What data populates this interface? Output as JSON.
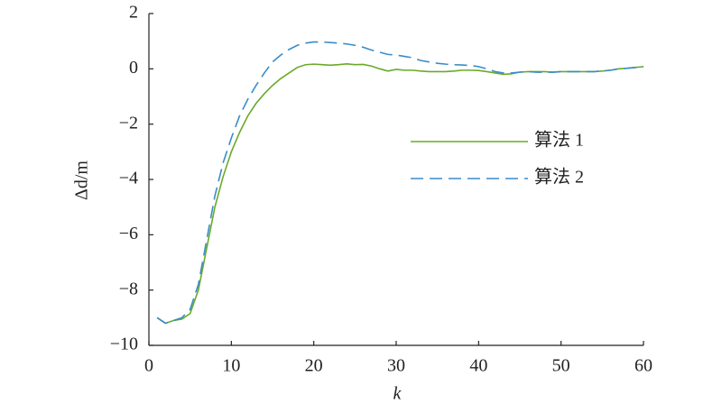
{
  "chart_data": {
    "type": "line",
    "xlabel": "k",
    "ylabel": "Δd/m",
    "x": [
      1,
      2,
      3,
      4,
      5,
      6,
      7,
      8,
      9,
      10,
      11,
      12,
      13,
      14,
      15,
      16,
      17,
      18,
      19,
      20,
      21,
      22,
      23,
      24,
      25,
      26,
      27,
      28,
      29,
      30,
      31,
      32,
      33,
      34,
      35,
      36,
      37,
      38,
      39,
      40,
      41,
      42,
      43,
      44,
      45,
      46,
      47,
      48,
      49,
      50,
      51,
      52,
      53,
      54,
      55,
      56,
      57,
      58,
      59,
      60
    ],
    "series": [
      {
        "name": "算法 1",
        "color": "#6aaa2a",
        "dash": false,
        "values": [
          -9.0,
          -9.2,
          -9.1,
          -9.05,
          -8.85,
          -8.0,
          -6.5,
          -5.0,
          -3.9,
          -3.0,
          -2.3,
          -1.7,
          -1.25,
          -0.9,
          -0.6,
          -0.35,
          -0.15,
          0.05,
          0.15,
          0.17,
          0.15,
          0.13,
          0.15,
          0.18,
          0.15,
          0.16,
          0.1,
          0.0,
          -0.08,
          -0.02,
          -0.05,
          -0.05,
          -0.08,
          -0.1,
          -0.1,
          -0.1,
          -0.08,
          -0.05,
          -0.05,
          -0.06,
          -0.1,
          -0.15,
          -0.2,
          -0.18,
          -0.12,
          -0.1,
          -0.1,
          -0.1,
          -0.12,
          -0.1,
          -0.1,
          -0.1,
          -0.1,
          -0.1,
          -0.08,
          -0.05,
          0.0,
          0.02,
          0.05,
          0.08
        ]
      },
      {
        "name": "算法 2",
        "color": "#3a8cc8",
        "dash": true,
        "values": [
          -9.0,
          -9.2,
          -9.1,
          -9.0,
          -8.7,
          -7.8,
          -6.2,
          -4.6,
          -3.4,
          -2.5,
          -1.7,
          -1.1,
          -0.6,
          -0.15,
          0.25,
          0.5,
          0.7,
          0.85,
          0.93,
          0.97,
          0.97,
          0.95,
          0.93,
          0.9,
          0.85,
          0.78,
          0.68,
          0.6,
          0.52,
          0.5,
          0.45,
          0.4,
          0.3,
          0.25,
          0.2,
          0.17,
          0.15,
          0.14,
          0.12,
          0.08,
          0.0,
          -0.1,
          -0.15,
          -0.15,
          -0.12,
          -0.1,
          -0.12,
          -0.12,
          -0.12,
          -0.1,
          -0.1,
          -0.1,
          -0.1,
          -0.1,
          -0.08,
          -0.05,
          0.0,
          0.02,
          0.05,
          0.08
        ]
      }
    ],
    "xlim": [
      0,
      60
    ],
    "xticks": [
      0,
      10,
      20,
      30,
      40,
      50,
      60
    ],
    "ylim": [
      -10,
      2
    ],
    "yticks": [
      {
        "value": -10,
        "label": "−10"
      },
      {
        "value": -8,
        "label": "−8"
      },
      {
        "value": -6,
        "label": "−6"
      },
      {
        "value": -4,
        "label": "−4"
      },
      {
        "value": -2,
        "label": "−2"
      },
      0,
      2
    ],
    "legend": "center-right",
    "grid": false
  }
}
